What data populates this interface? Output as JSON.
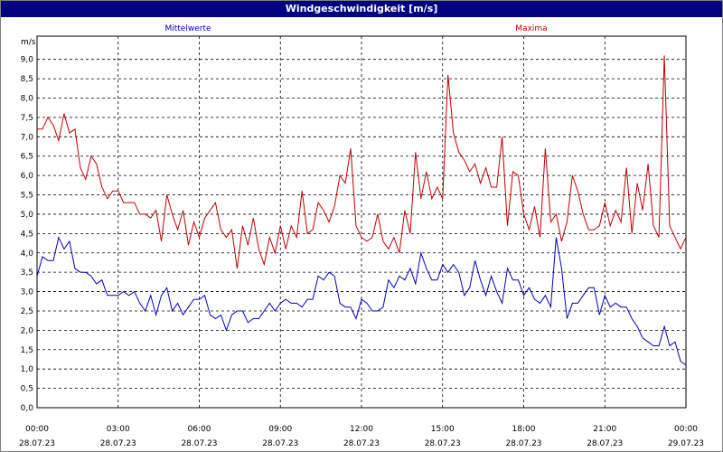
{
  "window_title": "Windgeschwindigkeit [m/s]",
  "chart_data": {
    "type": "line",
    "title": "Windgeschwindigkeit [m/s]",
    "ylabel": "m/s",
    "xlabel": "",
    "ylim": [
      0,
      9.6
    ],
    "xlim": [
      0,
      24
    ],
    "grid": true,
    "legend": "top",
    "y_ticks": [
      "0,0",
      "0,5",
      "1,0",
      "1,5",
      "2,0",
      "2,5",
      "3,0",
      "3,5",
      "4,0",
      "4,5",
      "5,0",
      "5,5",
      "6,0",
      "6,5",
      "7,0",
      "7,5",
      "8,0",
      "8,5",
      "9,0"
    ],
    "x_ticks": [
      {
        "time": "00:00",
        "date": "28.07.23"
      },
      {
        "time": "03:00",
        "date": "28.07.23"
      },
      {
        "time": "06:00",
        "date": "28.07.23"
      },
      {
        "time": "09:00",
        "date": "28.07.23"
      },
      {
        "time": "12:00",
        "date": "28.07.23"
      },
      {
        "time": "15:00",
        "date": "28.07.23"
      },
      {
        "time": "18:00",
        "date": "28.07.23"
      },
      {
        "time": "21:00",
        "date": "28.07.23"
      },
      {
        "time": "00:00",
        "date": "29.07.23"
      }
    ],
    "series": [
      {
        "name": "Mittelwerte",
        "color": "#0000c0",
        "points": [
          [
            0,
            3.4
          ],
          [
            0.2,
            3.9
          ],
          [
            0.4,
            3.8
          ],
          [
            0.6,
            3.8
          ],
          [
            0.8,
            4.4
          ],
          [
            1.0,
            4.1
          ],
          [
            1.2,
            4.3
          ],
          [
            1.4,
            3.6
          ],
          [
            1.6,
            3.5
          ],
          [
            1.8,
            3.5
          ],
          [
            2.0,
            3.4
          ],
          [
            2.2,
            3.2
          ],
          [
            2.4,
            3.3
          ],
          [
            2.6,
            2.9
          ],
          [
            2.8,
            2.9
          ],
          [
            3.0,
            2.9
          ],
          [
            3.2,
            3.0
          ],
          [
            3.4,
            2.9
          ],
          [
            3.6,
            3.0
          ],
          [
            3.8,
            2.7
          ],
          [
            4.0,
            2.5
          ],
          [
            4.2,
            2.9
          ],
          [
            4.4,
            2.4
          ],
          [
            4.6,
            2.9
          ],
          [
            4.8,
            3.1
          ],
          [
            5.0,
            2.5
          ],
          [
            5.2,
            2.7
          ],
          [
            5.4,
            2.4
          ],
          [
            5.6,
            2.6
          ],
          [
            5.8,
            2.8
          ],
          [
            6.0,
            2.8
          ],
          [
            6.2,
            2.9
          ],
          [
            6.4,
            2.4
          ],
          [
            6.6,
            2.3
          ],
          [
            6.8,
            2.4
          ],
          [
            7.0,
            2.0
          ],
          [
            7.2,
            2.4
          ],
          [
            7.4,
            2.5
          ],
          [
            7.6,
            2.5
          ],
          [
            7.8,
            2.2
          ],
          [
            8.0,
            2.3
          ],
          [
            8.2,
            2.3
          ],
          [
            8.4,
            2.5
          ],
          [
            8.6,
            2.7
          ],
          [
            8.8,
            2.5
          ],
          [
            9.0,
            2.7
          ],
          [
            9.2,
            2.8
          ],
          [
            9.4,
            2.7
          ],
          [
            9.6,
            2.7
          ],
          [
            9.8,
            2.6
          ],
          [
            10.0,
            2.8
          ],
          [
            10.2,
            2.8
          ],
          [
            10.4,
            3.4
          ],
          [
            10.6,
            3.3
          ],
          [
            10.8,
            3.5
          ],
          [
            11.0,
            3.4
          ],
          [
            11.2,
            2.7
          ],
          [
            11.4,
            2.6
          ],
          [
            11.6,
            2.6
          ],
          [
            11.8,
            2.3
          ],
          [
            12.0,
            2.8
          ],
          [
            12.2,
            2.7
          ],
          [
            12.4,
            2.5
          ],
          [
            12.6,
            2.5
          ],
          [
            12.8,
            2.6
          ],
          [
            13.0,
            3.3
          ],
          [
            13.2,
            3.1
          ],
          [
            13.4,
            3.4
          ],
          [
            13.6,
            3.3
          ],
          [
            13.8,
            3.6
          ],
          [
            14.0,
            3.2
          ],
          [
            14.2,
            4.0
          ],
          [
            14.4,
            3.6
          ],
          [
            14.6,
            3.3
          ],
          [
            14.8,
            3.3
          ],
          [
            15.0,
            3.7
          ],
          [
            15.2,
            3.5
          ],
          [
            15.4,
            3.7
          ],
          [
            15.6,
            3.5
          ],
          [
            15.8,
            2.9
          ],
          [
            16.0,
            3.1
          ],
          [
            16.2,
            3.8
          ],
          [
            16.4,
            3.3
          ],
          [
            16.6,
            2.9
          ],
          [
            16.8,
            3.4
          ],
          [
            17.0,
            3.0
          ],
          [
            17.2,
            2.7
          ],
          [
            17.4,
            3.6
          ],
          [
            17.6,
            3.3
          ],
          [
            17.8,
            3.3
          ],
          [
            18.0,
            2.9
          ],
          [
            18.2,
            3.1
          ],
          [
            18.4,
            2.8
          ],
          [
            18.6,
            2.7
          ],
          [
            18.8,
            2.9
          ],
          [
            19.0,
            2.6
          ],
          [
            19.2,
            4.4
          ],
          [
            19.4,
            3.6
          ],
          [
            19.6,
            2.3
          ],
          [
            19.8,
            2.7
          ],
          [
            20.0,
            2.7
          ],
          [
            20.2,
            2.9
          ],
          [
            20.4,
            3.1
          ],
          [
            20.6,
            3.1
          ],
          [
            20.8,
            2.4
          ],
          [
            21.0,
            2.9
          ],
          [
            21.2,
            2.6
          ],
          [
            21.4,
            2.7
          ],
          [
            21.6,
            2.6
          ],
          [
            21.8,
            2.6
          ],
          [
            22.0,
            2.3
          ],
          [
            22.2,
            2.1
          ],
          [
            22.4,
            1.8
          ],
          [
            22.6,
            1.7
          ],
          [
            22.8,
            1.6
          ],
          [
            23.0,
            1.6
          ],
          [
            23.2,
            2.1
          ],
          [
            23.4,
            1.6
          ],
          [
            23.6,
            1.7
          ],
          [
            23.8,
            1.2
          ],
          [
            24.0,
            1.1
          ]
        ]
      },
      {
        "name": "Maxima",
        "color": "#c00000",
        "points": [
          [
            0,
            7.2
          ],
          [
            0.2,
            7.2
          ],
          [
            0.4,
            7.5
          ],
          [
            0.6,
            7.3
          ],
          [
            0.8,
            6.9
          ],
          [
            1.0,
            7.6
          ],
          [
            1.2,
            7.1
          ],
          [
            1.4,
            7.2
          ],
          [
            1.6,
            6.2
          ],
          [
            1.8,
            5.9
          ],
          [
            2.0,
            6.5
          ],
          [
            2.2,
            6.3
          ],
          [
            2.4,
            5.7
          ],
          [
            2.6,
            5.4
          ],
          [
            2.8,
            5.6
          ],
          [
            3.0,
            5.6
          ],
          [
            3.2,
            5.3
          ],
          [
            3.4,
            5.3
          ],
          [
            3.6,
            5.3
          ],
          [
            3.8,
            5.0
          ],
          [
            4.0,
            5.0
          ],
          [
            4.2,
            4.9
          ],
          [
            4.4,
            5.1
          ],
          [
            4.6,
            4.3
          ],
          [
            4.8,
            5.5
          ],
          [
            5.0,
            5.0
          ],
          [
            5.2,
            4.6
          ],
          [
            5.4,
            5.1
          ],
          [
            5.6,
            4.2
          ],
          [
            5.8,
            4.8
          ],
          [
            6.0,
            4.4
          ],
          [
            6.2,
            4.9
          ],
          [
            6.4,
            5.1
          ],
          [
            6.6,
            5.3
          ],
          [
            6.8,
            4.6
          ],
          [
            7.0,
            4.4
          ],
          [
            7.2,
            4.6
          ],
          [
            7.4,
            3.6
          ],
          [
            7.6,
            4.7
          ],
          [
            7.8,
            4.2
          ],
          [
            8.0,
            4.9
          ],
          [
            8.2,
            4.1
          ],
          [
            8.4,
            3.7
          ],
          [
            8.6,
            4.4
          ],
          [
            8.8,
            4.0
          ],
          [
            9.0,
            4.7
          ],
          [
            9.2,
            4.1
          ],
          [
            9.4,
            4.7
          ],
          [
            9.6,
            4.4
          ],
          [
            9.8,
            5.6
          ],
          [
            10.0,
            4.5
          ],
          [
            10.2,
            4.6
          ],
          [
            10.4,
            5.3
          ],
          [
            10.6,
            5.1
          ],
          [
            10.8,
            4.8
          ],
          [
            11.0,
            5.2
          ],
          [
            11.2,
            6.0
          ],
          [
            11.4,
            5.8
          ],
          [
            11.6,
            6.7
          ],
          [
            11.8,
            4.7
          ],
          [
            12.0,
            4.4
          ],
          [
            12.2,
            4.3
          ],
          [
            12.4,
            4.4
          ],
          [
            12.6,
            5.0
          ],
          [
            12.8,
            4.3
          ],
          [
            13.0,
            4.1
          ],
          [
            13.2,
            4.4
          ],
          [
            13.4,
            4.0
          ],
          [
            13.6,
            5.1
          ],
          [
            13.8,
            4.5
          ],
          [
            14.0,
            6.6
          ],
          [
            14.2,
            5.4
          ],
          [
            14.4,
            6.1
          ],
          [
            14.6,
            5.4
          ],
          [
            14.8,
            5.7
          ],
          [
            15.0,
            5.4
          ],
          [
            15.2,
            8.6
          ],
          [
            15.4,
            7.1
          ],
          [
            15.6,
            6.6
          ],
          [
            15.8,
            6.4
          ],
          [
            16.0,
            6.1
          ],
          [
            16.2,
            6.3
          ],
          [
            16.4,
            5.8
          ],
          [
            16.6,
            6.2
          ],
          [
            16.8,
            5.7
          ],
          [
            17.0,
            5.7
          ],
          [
            17.2,
            7.0
          ],
          [
            17.4,
            4.7
          ],
          [
            17.6,
            6.1
          ],
          [
            17.8,
            6.0
          ],
          [
            18.0,
            5.0
          ],
          [
            18.2,
            4.6
          ],
          [
            18.4,
            5.2
          ],
          [
            18.6,
            4.4
          ],
          [
            18.8,
            6.7
          ],
          [
            19.0,
            4.8
          ],
          [
            19.2,
            5.0
          ],
          [
            19.4,
            4.3
          ],
          [
            19.6,
            4.8
          ],
          [
            19.8,
            6.0
          ],
          [
            20.0,
            5.6
          ],
          [
            20.2,
            5.0
          ],
          [
            20.4,
            4.6
          ],
          [
            20.6,
            4.6
          ],
          [
            20.8,
            4.7
          ],
          [
            21.0,
            5.3
          ],
          [
            21.2,
            4.7
          ],
          [
            21.4,
            5.1
          ],
          [
            21.6,
            4.8
          ],
          [
            21.8,
            6.2
          ],
          [
            22.0,
            4.5
          ],
          [
            22.2,
            5.8
          ],
          [
            22.4,
            5.1
          ],
          [
            22.6,
            6.3
          ],
          [
            22.8,
            4.7
          ],
          [
            23.0,
            4.4
          ],
          [
            23.2,
            9.1
          ],
          [
            23.4,
            4.7
          ],
          [
            23.6,
            4.4
          ],
          [
            23.8,
            4.1
          ],
          [
            24.0,
            4.4
          ]
        ]
      }
    ]
  }
}
